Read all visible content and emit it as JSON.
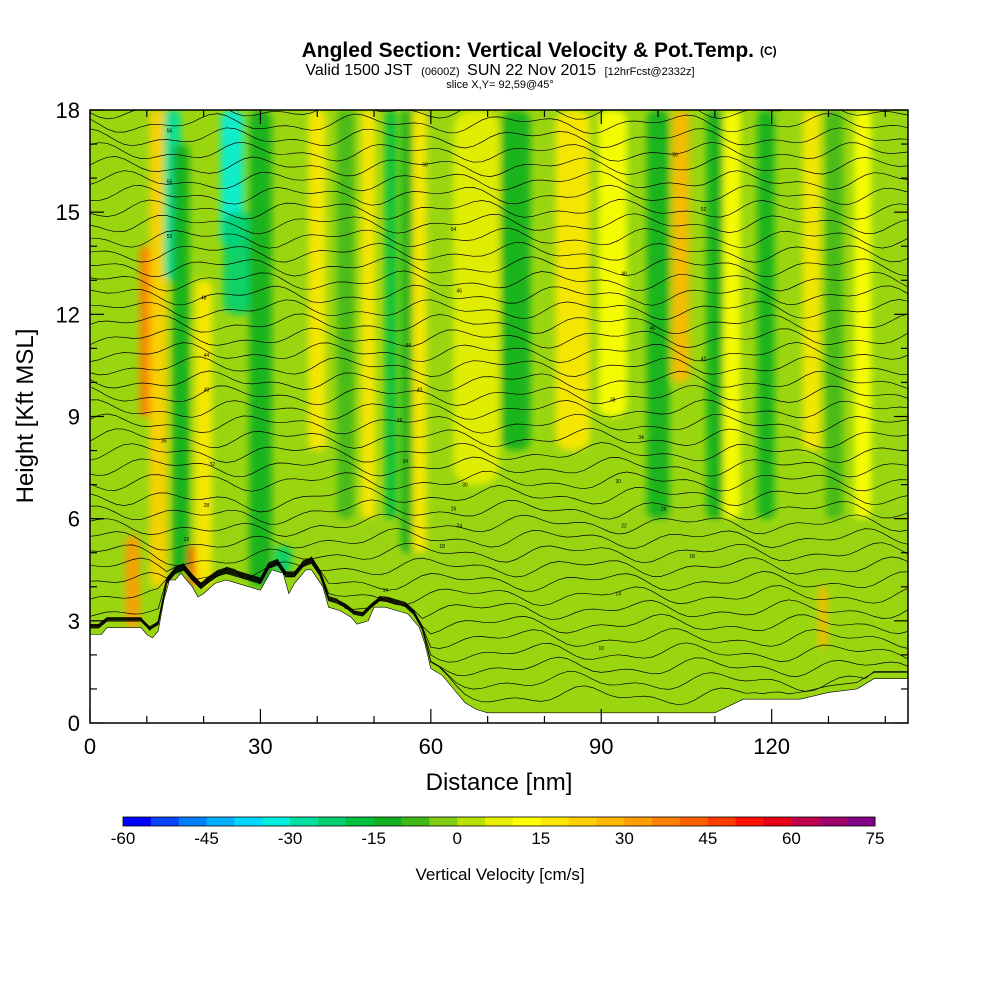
{
  "chart_data": {
    "type": "heatmap",
    "title": "Angled Section: Vertical Velocity & Pot.Temp.",
    "title_unit": "(C)",
    "subtitle_parts": {
      "valid": "Valid 1500 JST",
      "utc": "(0600Z)",
      "date": "SUN 22 Nov 2015",
      "forecast": "[12hrFcst@2332z]"
    },
    "slice": "slice X,Y= 92,59@45°",
    "xlabel": "Distance [nm]",
    "ylabel": "Height [Kft MSL]",
    "xlim": [
      0,
      144
    ],
    "ylim": [
      0,
      18
    ],
    "x_ticks": [
      {
        "value": 0,
        "label": "0"
      },
      {
        "value": 30,
        "label": "30"
      },
      {
        "value": 60,
        "label": "60"
      },
      {
        "value": 90,
        "label": "90"
      },
      {
        "value": 120,
        "label": "120"
      }
    ],
    "y_ticks": [
      {
        "value": 0,
        "label": "0"
      },
      {
        "value": 3,
        "label": "3"
      },
      {
        "value": 6,
        "label": "6"
      },
      {
        "value": 9,
        "label": "9"
      },
      {
        "value": 12,
        "label": "12"
      },
      {
        "value": 15,
        "label": "15"
      },
      {
        "value": 18,
        "label": "18"
      }
    ],
    "terrain": {
      "x": [
        0,
        2,
        3,
        5,
        9,
        10,
        11,
        12,
        13,
        14,
        15,
        16,
        17,
        18,
        19,
        20,
        22,
        24,
        26,
        28,
        30,
        31,
        32,
        34,
        35,
        36,
        38,
        39,
        41,
        42,
        44,
        46,
        47,
        49,
        50,
        52,
        54,
        56,
        58,
        59,
        60,
        62,
        63,
        64,
        66,
        68,
        70,
        75,
        80,
        85,
        90,
        95,
        100,
        105,
        110,
        115,
        120,
        125,
        130,
        135,
        138,
        140,
        144
      ],
      "height": [
        2.6,
        2.6,
        2.8,
        2.8,
        2.8,
        2.6,
        2.5,
        2.7,
        3.6,
        4.2,
        4.2,
        4.4,
        4.2,
        4.0,
        3.7,
        3.8,
        4.1,
        4.2,
        4.1,
        4.0,
        3.9,
        4.2,
        4.5,
        4.4,
        3.8,
        4.1,
        4.5,
        4.5,
        4.0,
        3.4,
        3.3,
        3.1,
        2.9,
        3.0,
        3.4,
        3.4,
        3.3,
        3.2,
        2.8,
        2.3,
        1.6,
        1.4,
        1.2,
        1.0,
        0.6,
        0.4,
        0.3,
        0.3,
        0.3,
        0.3,
        0.3,
        0.3,
        0.3,
        0.3,
        0.3,
        0.7,
        0.7,
        0.7,
        0.9,
        1.0,
        1.3,
        1.3,
        1.3
      ]
    },
    "velocity_features": [
      {
        "x": 7.5,
        "width": 2.5,
        "value": 32,
        "y_min": 2.0,
        "y_max": 5.5
      },
      {
        "x": 10,
        "width": 2.5,
        "value": 35,
        "y_min": 9.0,
        "y_max": 14.0
      },
      {
        "x": 12,
        "width": 3,
        "value": 20,
        "y_min": 4.0,
        "y_max": 18.0
      },
      {
        "x": 14.5,
        "width": 3,
        "value": -30,
        "y_min": 13.0,
        "y_max": 18.0
      },
      {
        "x": 16,
        "width": 3,
        "value": -12,
        "y_min": 4.0,
        "y_max": 17.0
      },
      {
        "x": 18,
        "width": 1.2,
        "value": 45,
        "y_min": 3.8,
        "y_max": 5.2
      },
      {
        "x": 20,
        "width": 3,
        "value": 18,
        "y_min": 4.0,
        "y_max": 13.0
      },
      {
        "x": 25,
        "width": 4,
        "value": -32,
        "y_min": 14.0,
        "y_max": 18.0
      },
      {
        "x": 26,
        "width": 5,
        "value": -22,
        "y_min": 12.0,
        "y_max": 15.0
      },
      {
        "x": 30,
        "width": 4,
        "value": -15,
        "y_min": 4.0,
        "y_max": 18.0
      },
      {
        "x": 34,
        "width": 3,
        "value": -25,
        "y_min": 4.0,
        "y_max": 5.2
      },
      {
        "x": 40,
        "width": 3,
        "value": 15,
        "y_min": 8.0,
        "y_max": 18.0
      },
      {
        "x": 45,
        "width": 3,
        "value": -10,
        "y_min": 6.0,
        "y_max": 18.0
      },
      {
        "x": 49,
        "width": 2.5,
        "value": 15,
        "y_min": 6.0,
        "y_max": 18.0
      },
      {
        "x": 53,
        "width": 2,
        "value": -20,
        "y_min": 6.0,
        "y_max": 18.0
      },
      {
        "x": 56,
        "width": 2.5,
        "value": -12,
        "y_min": 5.0,
        "y_max": 18.0
      },
      {
        "x": 58,
        "width": 2.5,
        "value": 15,
        "y_min": 5.0,
        "y_max": 18.0
      },
      {
        "x": 68,
        "width": 8,
        "value": 8,
        "y_min": 7.0,
        "y_max": 18.0
      },
      {
        "x": 75,
        "width": 5,
        "value": -12,
        "y_min": 8.0,
        "y_max": 18.0
      },
      {
        "x": 85,
        "width": 6,
        "value": 15,
        "y_min": 8.0,
        "y_max": 18.0
      },
      {
        "x": 92,
        "width": 5,
        "value": 12,
        "y_min": 9.0,
        "y_max": 18.0
      },
      {
        "x": 100,
        "width": 4,
        "value": -12,
        "y_min": 6.0,
        "y_max": 18.0
      },
      {
        "x": 104,
        "width": 3,
        "value": 25,
        "y_min": 10.0,
        "y_max": 18.0
      },
      {
        "x": 110,
        "width": 3,
        "value": -15,
        "y_min": 6.0,
        "y_max": 18.0
      },
      {
        "x": 113,
        "width": 3,
        "value": 12,
        "y_min": 6.0,
        "y_max": 18.0
      },
      {
        "x": 119,
        "width": 3,
        "value": -15,
        "y_min": 6.0,
        "y_max": 18.0
      },
      {
        "x": 127,
        "width": 3,
        "value": 15,
        "y_min": 8.0,
        "y_max": 18.0
      },
      {
        "x": 131,
        "width": 3,
        "value": -10,
        "y_min": 6.0,
        "y_max": 18.0
      },
      {
        "x": 129,
        "width": 1.5,
        "value": 28,
        "y_min": 2.2,
        "y_max": 4.0
      },
      {
        "x": 136,
        "width": 3,
        "value": 12,
        "y_min": 6.0,
        "y_max": 18.0
      }
    ],
    "contour_labels": [
      {
        "x": 14,
        "y": 17.4,
        "text": "56"
      },
      {
        "x": 14,
        "y": 15.9,
        "text": "56"
      },
      {
        "x": 14,
        "y": 14.3,
        "text": "52"
      },
      {
        "x": 20,
        "y": 12.5,
        "text": "48"
      },
      {
        "x": 20.5,
        "y": 10.8,
        "text": "44"
      },
      {
        "x": 20.5,
        "y": 9.8,
        "text": "40"
      },
      {
        "x": 13,
        "y": 8.3,
        "text": "36"
      },
      {
        "x": 21.5,
        "y": 7.6,
        "text": "32"
      },
      {
        "x": 20.5,
        "y": 6.4,
        "text": "28"
      },
      {
        "x": 17,
        "y": 5.4,
        "text": "22"
      },
      {
        "x": 59,
        "y": 16.4,
        "text": "56"
      },
      {
        "x": 64,
        "y": 14.5,
        "text": "54"
      },
      {
        "x": 65,
        "y": 12.7,
        "text": "46"
      },
      {
        "x": 56,
        "y": 11.1,
        "text": "44"
      },
      {
        "x": 58,
        "y": 9.8,
        "text": "40"
      },
      {
        "x": 54.5,
        "y": 8.9,
        "text": "36"
      },
      {
        "x": 55.5,
        "y": 7.7,
        "text": "34"
      },
      {
        "x": 66,
        "y": 7.0,
        "text": "30"
      },
      {
        "x": 64,
        "y": 6.3,
        "text": "26"
      },
      {
        "x": 65,
        "y": 5.8,
        "text": "24"
      },
      {
        "x": 62,
        "y": 5.2,
        "text": "18"
      },
      {
        "x": 52,
        "y": 3.9,
        "text": "14"
      },
      {
        "x": 103,
        "y": 16.7,
        "text": "56"
      },
      {
        "x": 108,
        "y": 15.1,
        "text": "52"
      },
      {
        "x": 94,
        "y": 13.2,
        "text": "48"
      },
      {
        "x": 99,
        "y": 11.6,
        "text": "46"
      },
      {
        "x": 108,
        "y": 10.7,
        "text": "42"
      },
      {
        "x": 92,
        "y": 9.5,
        "text": "38"
      },
      {
        "x": 97,
        "y": 8.4,
        "text": "34"
      },
      {
        "x": 93,
        "y": 7.1,
        "text": "30"
      },
      {
        "x": 101,
        "y": 6.3,
        "text": "26"
      },
      {
        "x": 94,
        "y": 5.8,
        "text": "22"
      },
      {
        "x": 106,
        "y": 4.9,
        "text": "18"
      },
      {
        "x": 93,
        "y": 3.8,
        "text": "14"
      },
      {
        "x": 90,
        "y": 2.2,
        "text": "10"
      }
    ],
    "colorbar": {
      "title": "Vertical Velocity [cm/s]",
      "min": -60,
      "max": 75,
      "step": 5,
      "tick_labels": [
        {
          "value": -60,
          "label": "-60"
        },
        {
          "value": -45,
          "label": "-45"
        },
        {
          "value": -30,
          "label": "-30"
        },
        {
          "value": -15,
          "label": "-15"
        },
        {
          "value": 0,
          "label": "0"
        },
        {
          "value": 15,
          "label": "15"
        },
        {
          "value": 30,
          "label": "30"
        },
        {
          "value": 45,
          "label": "45"
        },
        {
          "value": 60,
          "label": "60"
        },
        {
          "value": 75,
          "label": "75"
        }
      ],
      "colors": [
        "#0000ff",
        "#0a44ff",
        "#0080ff",
        "#00b0ff",
        "#00d8ff",
        "#00f0e0",
        "#00e0a0",
        "#00d070",
        "#00c040",
        "#10b020",
        "#40b818",
        "#80cc10",
        "#b8e000",
        "#e8f000",
        "#ffff00",
        "#ffe800",
        "#ffd000",
        "#ffb800",
        "#ff9c00",
        "#ff8000",
        "#ff6000",
        "#ff3c00",
        "#ff1000",
        "#e80018",
        "#c0004c",
        "#a0006c",
        "#800088"
      ]
    }
  }
}
